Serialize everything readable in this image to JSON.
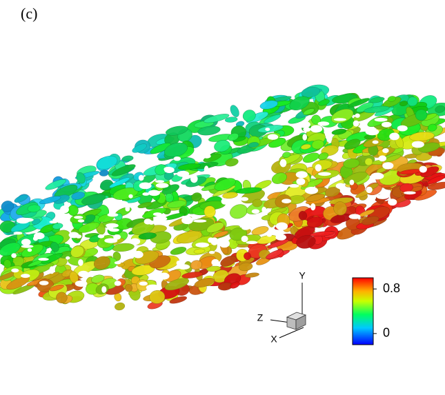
{
  "panel_label": "(c)",
  "axes_triad": {
    "x": "X",
    "y": "Y",
    "z": "Z"
  },
  "colorbar": {
    "range": [
      -0.2,
      1.0
    ],
    "ticks": [
      0,
      0.8
    ]
  }
}
